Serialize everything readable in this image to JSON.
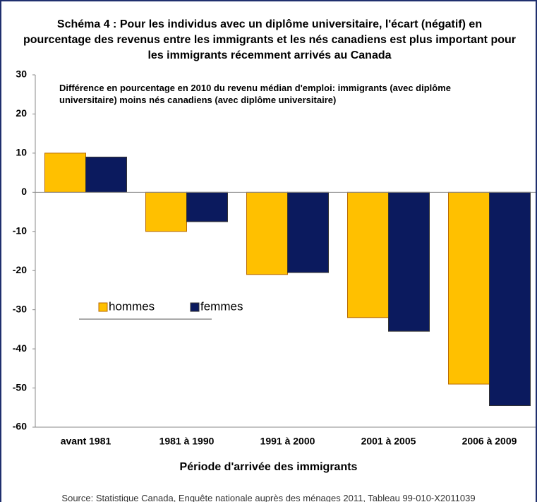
{
  "chart_data": {
    "type": "bar",
    "title": "Schéma 4 : Pour les individus avec un diplôme universitaire, l'écart (négatif) en pourcentage des revenus entre les immigrants et les nés canadiens est plus important pour les immigrants récemment arrivés au Canada",
    "subtitle": "Différence en pourcentage en 2010 du revenu médian d'emploi: immigrants (avec diplôme universitaire) moins nés canadiens (avec diplôme universitaire)",
    "x_label": "Période d'arrivée des immigrants",
    "source": "Source: Statistique Canada, Enquête nationale auprès des ménages 2011, Tableau 99-010-X2011039",
    "categories": [
      "avant 1981",
      "1981 à 1990",
      "1991 à 2000",
      "2001 à 2005",
      "2006 à 2009"
    ],
    "series": [
      {
        "name": "hommes",
        "color": "#ffc000",
        "values": [
          10,
          -10,
          -21,
          -32,
          -49
        ]
      },
      {
        "name": "femmes",
        "color": "#0b1a5e",
        "values": [
          9,
          -7.5,
          -20.5,
          -35.5,
          -54.5
        ]
      }
    ],
    "ylim": [
      -60,
      30
    ],
    "yticks": [
      30,
      20,
      10,
      0,
      -10,
      -20,
      -30,
      -40,
      -50,
      -60
    ]
  }
}
